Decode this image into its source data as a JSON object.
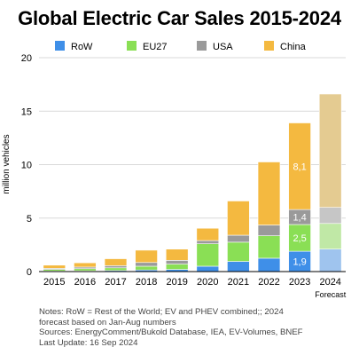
{
  "chart_data": {
    "type": "bar",
    "stacked": true,
    "title": "Global Electric Car Sales 2015-2024",
    "ylabel": "million vehicles",
    "xlabel": "",
    "ylim": [
      0,
      20
    ],
    "yticks": [
      "0",
      "5",
      "10",
      "15",
      "20"
    ],
    "categories": [
      "2015",
      "2016",
      "2017",
      "2018",
      "2019",
      "2020",
      "2021",
      "2022",
      "2023",
      "2024"
    ],
    "x_sublabel": {
      "2024": "Forecast"
    },
    "forecast_category": "2024",
    "grid": true,
    "legend_position": "top",
    "series": [
      {
        "name": "RoW",
        "color": "#3f8fe8",
        "forecast_color": "#9fc4ee",
        "values": [
          0.05,
          0.07,
          0.1,
          0.15,
          0.2,
          0.5,
          0.95,
          1.25,
          1.9,
          2.1
        ]
      },
      {
        "name": "EU27",
        "color": "#8adf55",
        "forecast_color": "#c0e8a6",
        "values": [
          0.15,
          0.2,
          0.25,
          0.35,
          0.5,
          2.1,
          1.8,
          2.1,
          2.5,
          2.4
        ]
      },
      {
        "name": "USA",
        "color": "#9a9a9a",
        "forecast_color": "#c6c6c6",
        "values": [
          0.1,
          0.15,
          0.2,
          0.35,
          0.35,
          0.3,
          0.65,
          1.0,
          1.4,
          1.5
        ]
      },
      {
        "name": "China",
        "color": "#f4b940",
        "forecast_color": "#e4cb91",
        "values": [
          0.3,
          0.4,
          0.65,
          1.15,
          1.05,
          1.15,
          3.2,
          5.9,
          8.1,
          10.6
        ]
      }
    ],
    "data_labels": [
      {
        "category": "2023",
        "series": "RoW",
        "text": "1,9"
      },
      {
        "category": "2023",
        "series": "EU27",
        "text": "2,5"
      },
      {
        "category": "2023",
        "series": "USA",
        "text": "1,4"
      },
      {
        "category": "2023",
        "series": "China",
        "text": "8,1"
      }
    ]
  },
  "notes": [
    "Notes: RoW = Rest of the World; EV and PHEV combined;; 2024",
    "forecast based on Jan-Aug numbers",
    "Sources: EnergyComment/Bukold Database, IEA, EV-Volumes, BNEF",
    "Last Update: 16 Sep 2024"
  ]
}
